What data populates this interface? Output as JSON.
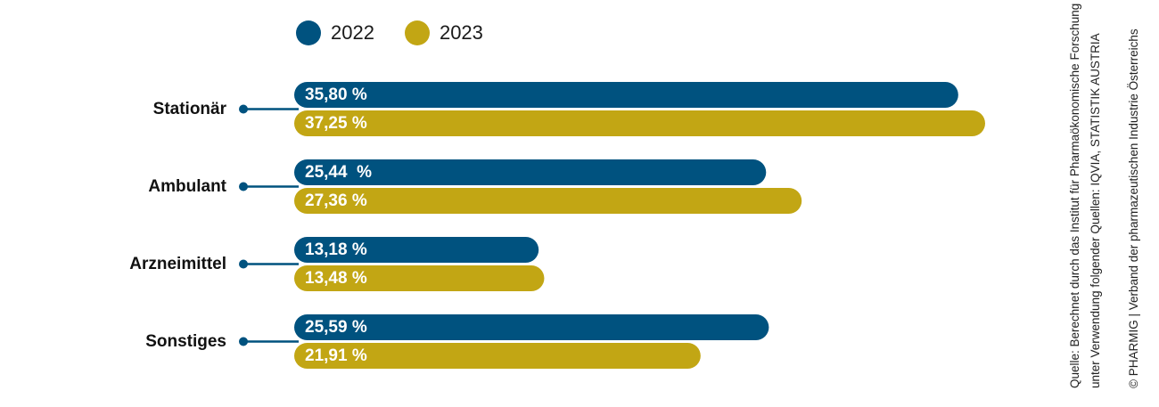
{
  "chart_data": {
    "type": "bar",
    "orientation": "horizontal",
    "categories": [
      "Stationär",
      "Ambulant",
      "Arzneimittel",
      "Sonstiges"
    ],
    "series": [
      {
        "name": "2022",
        "color": "#00527f",
        "values": [
          35.8,
          25.44,
          13.18,
          25.59
        ],
        "labels": [
          "35,80 %",
          "25,44  %",
          "13,18 %",
          "25,59 %"
        ]
      },
      {
        "name": "2023",
        "color": "#c2a614",
        "values": [
          37.25,
          27.36,
          13.48,
          21.91
        ],
        "labels": [
          "37,25 %",
          "27,36 %",
          "13,48 %",
          "21,91 %"
        ]
      }
    ],
    "legend_position": "top-left",
    "grid": false,
    "xlim": [
      0,
      37.25
    ]
  },
  "source": {
    "line1": "Quelle: Berechnet durch das Institut für Pharmaökonomische Forschung",
    "line2": "unter Verwendung folgender Quellen: IQVIA, STATISTIK AUSTRIA",
    "copyright": "© PHARMIG | Verband der pharmazeutischen Industrie Österreichs"
  },
  "colors": {
    "connector": "#00527f",
    "text": "#111111"
  }
}
